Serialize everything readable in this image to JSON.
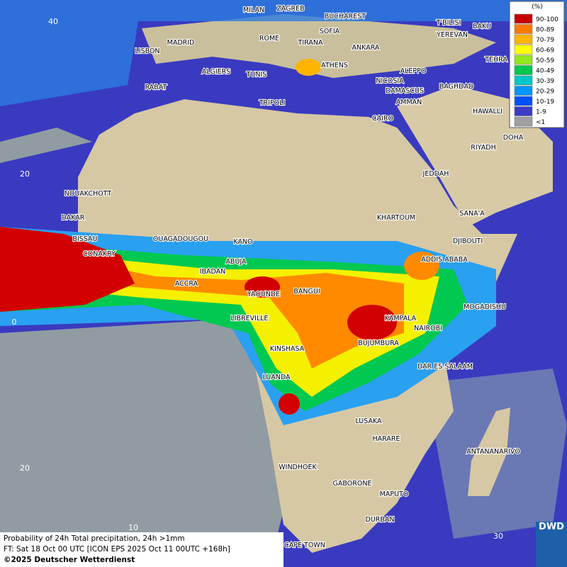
{
  "legend": {
    "unit": "(%)",
    "items": [
      {
        "label": "90-100",
        "color": "#c80000"
      },
      {
        "label": "80-89",
        "color": "#ff7800"
      },
      {
        "label": "70-79",
        "color": "#ffb400"
      },
      {
        "label": "60-69",
        "color": "#ffff00"
      },
      {
        "label": "50-59",
        "color": "#96e61e"
      },
      {
        "label": "40-49",
        "color": "#00c850"
      },
      {
        "label": "30-39",
        "color": "#00c8c8"
      },
      {
        "label": "20-29",
        "color": "#0096ff"
      },
      {
        "label": "10-19",
        "color": "#0050ff"
      },
      {
        "label": "1-9",
        "color": "#3c3cc8"
      },
      {
        "label": "<1",
        "color": "#a0a0a0"
      }
    ]
  },
  "cities": [
    "MILAN",
    "ZAGREB",
    "BUCHAREST",
    "T'BILISI",
    "BAKU",
    "SOFIA",
    "YEREVAN",
    "MADRID",
    "ROME",
    "TIRANA",
    "ANKARA",
    "LISBON",
    "TEHRA",
    "ATHENS",
    "ALGIERS",
    "TUNIS",
    "ALEPPO",
    "RABAT",
    "NICOSIA",
    "BAGHDAD",
    "DAMASCUS",
    "TRIPOLI",
    "AMMAN",
    "HAWALLI",
    "CAIRO",
    "DOHA",
    "RIYADH",
    "NOUAKCHOTT",
    "JEDDAH",
    "SANA'A",
    "KHARTOUM",
    "DAKAR",
    "BISSAU",
    "OUAGADOUGOU",
    "DJIBOUTI",
    "KANO",
    "CONAKRY",
    "ABUJA",
    "ADDIS ABABA",
    "IBADAN",
    "ACCRA",
    "YAOUNDE",
    "BANGUI",
    "MOGADISHU",
    "LIBREVILLE",
    "KAMPALA",
    "NAIROBI",
    "BUJUMBURA",
    "KINSHASA",
    "DAR ES SALAAM",
    "LUANDA",
    "LUSAKA",
    "HARARE",
    "ANTANANARIVO",
    "WINDHOEK",
    "GABORONE",
    "MAPUTO",
    "DURBAN",
    "CAPE TOWN"
  ],
  "grid_labels": [
    "40",
    "20",
    "0",
    "20",
    "10",
    "30"
  ],
  "caption": {
    "line1": "Probability of 24h Total precipitation, 24h >1mm",
    "line2": "FT: Sat 18 Oct 00 UTC [ICON EPS 2025 Oct 11 00UTC +168h]",
    "copyright": "©2025 Deutscher Wetterdienst"
  },
  "logo": "DWD"
}
